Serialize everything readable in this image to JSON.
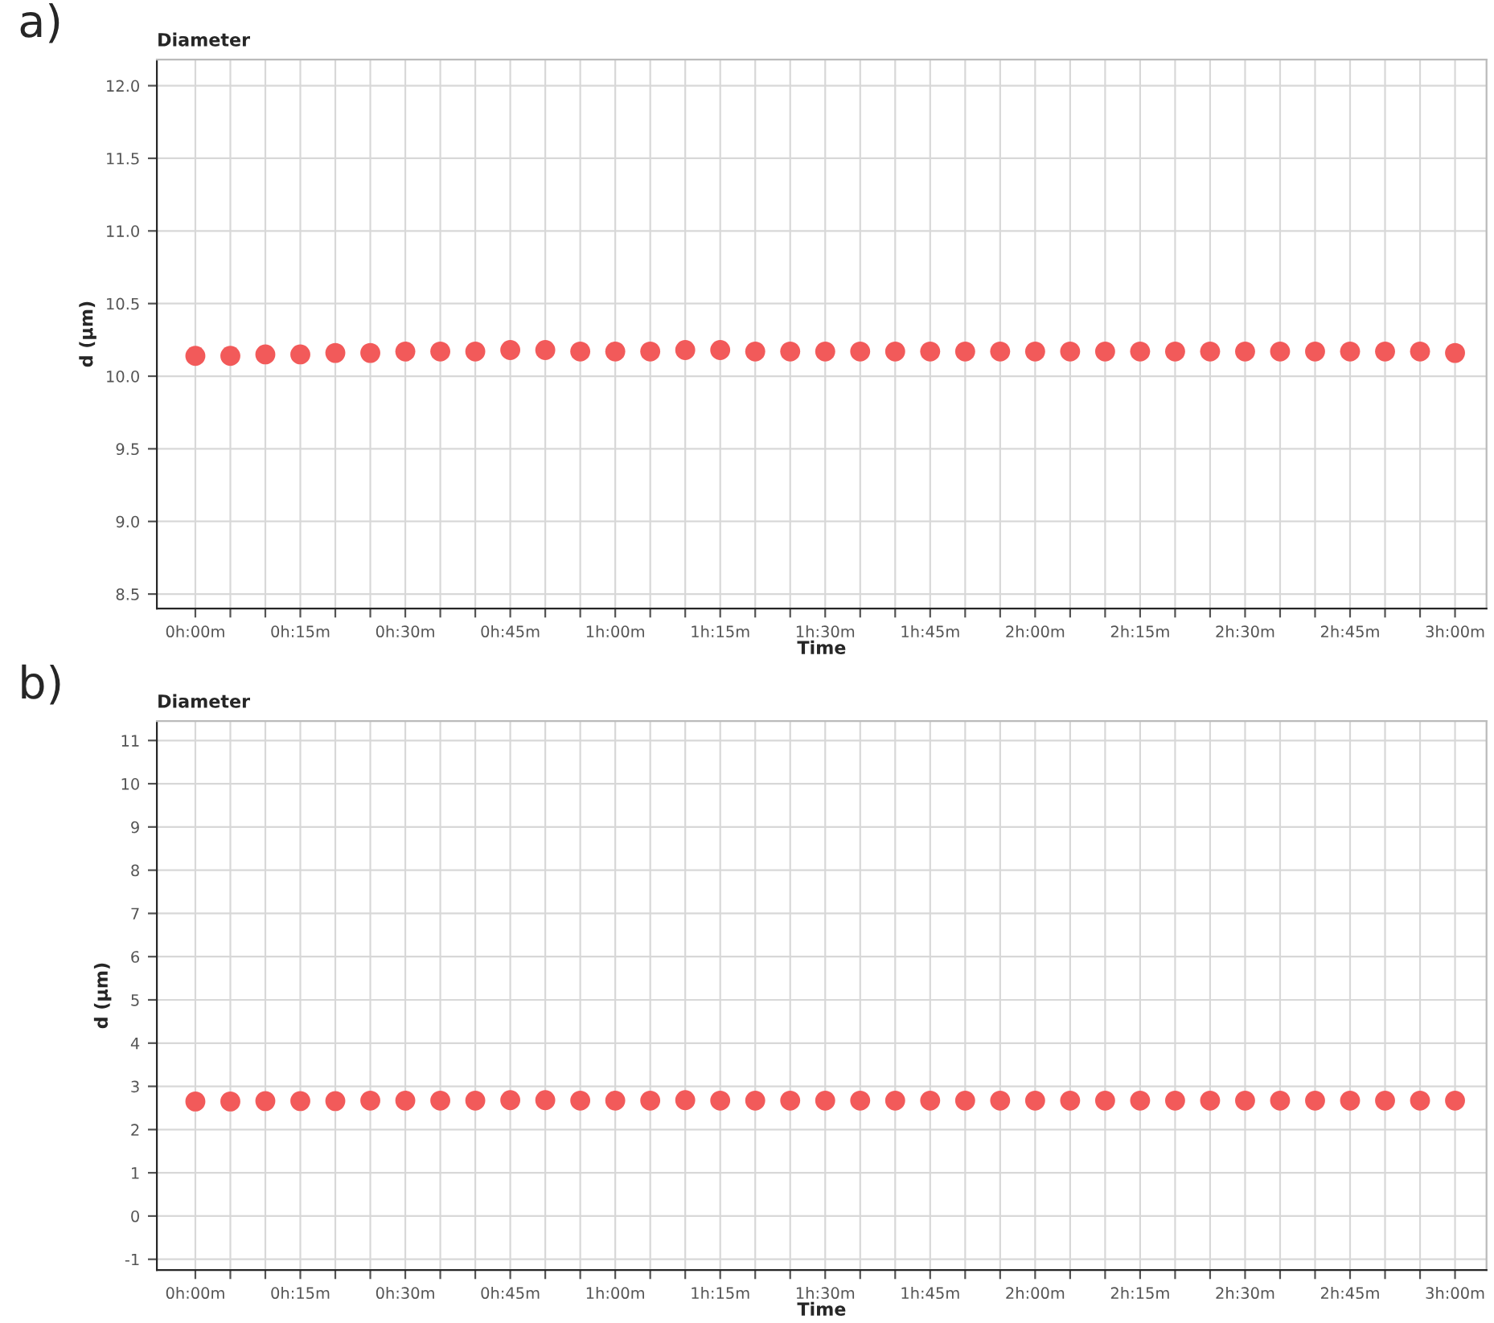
{
  "chart_data": [
    {
      "type": "scatter",
      "title": "Diameter",
      "xlabel": "Time",
      "ylabel": "d (µm)",
      "annotations": [
        "a)"
      ],
      "categories": [
        "0h:00m",
        null,
        null,
        "0h:15m",
        null,
        null,
        "0h:30m",
        null,
        null,
        "0h:45m",
        null,
        null,
        "1h:00m",
        null,
        null,
        "1h:15m",
        null,
        null,
        "1h:30m",
        null,
        null,
        "1h:45m",
        null,
        null,
        "2h:00m",
        null,
        null,
        "2h:15m",
        null,
        null,
        "2h:30m",
        null,
        null,
        "2h:45m",
        null,
        null,
        "3h:00m"
      ],
      "series": [
        {
          "color": "#f25a5a",
          "values": [
            10.14,
            10.14,
            10.15,
            10.15,
            10.16,
            10.16,
            10.17,
            10.17,
            10.17,
            10.18,
            10.18,
            10.17,
            10.17,
            10.17,
            10.18,
            10.18,
            10.17,
            10.17,
            10.17,
            10.17,
            10.17,
            10.17,
            10.17,
            10.17,
            10.17,
            10.17,
            10.17,
            10.17,
            10.17,
            10.17,
            10.17,
            10.17,
            10.17,
            10.17,
            10.17,
            10.17,
            10.16
          ]
        }
      ],
      "ylim": [
        8.4,
        12.18
      ],
      "yticks": [
        {
          "value": 8.5,
          "label": "8.5"
        },
        {
          "value": 9,
          "label": "9.0"
        },
        {
          "value": 9.5,
          "label": "9.5"
        },
        {
          "value": 10,
          "label": "10.0"
        },
        {
          "value": 10.5,
          "label": "10.5"
        },
        {
          "value": 11,
          "label": "11.0"
        },
        {
          "value": 11.5,
          "label": "11.5"
        },
        {
          "value": 12,
          "label": "12.0"
        }
      ],
      "grid": true,
      "marker": "circle"
    },
    {
      "type": "scatter",
      "title": "Diameter",
      "xlabel": "Time",
      "ylabel": "d (µm)",
      "annotations": [
        "b)"
      ],
      "categories": [
        "0h:00m",
        null,
        null,
        "0h:15m",
        null,
        null,
        "0h:30m",
        null,
        null,
        "0h:45m",
        null,
        null,
        "1h:00m",
        null,
        null,
        "1h:15m",
        null,
        null,
        "1h:30m",
        null,
        null,
        "1h:45m",
        null,
        null,
        "2h:00m",
        null,
        null,
        "2h:15m",
        null,
        null,
        "2h:30m",
        null,
        null,
        "2h:45m",
        null,
        null,
        "3h:00m"
      ],
      "series": [
        {
          "color": "#f25a5a",
          "values": [
            2.65,
            2.65,
            2.66,
            2.66,
            2.66,
            2.67,
            2.67,
            2.67,
            2.67,
            2.68,
            2.68,
            2.67,
            2.67,
            2.67,
            2.68,
            2.67,
            2.67,
            2.67,
            2.67,
            2.67,
            2.67,
            2.67,
            2.67,
            2.67,
            2.67,
            2.67,
            2.67,
            2.67,
            2.67,
            2.67,
            2.67,
            2.67,
            2.67,
            2.67,
            2.67,
            2.67,
            2.67
          ]
        }
      ],
      "ylim": [
        -1.25,
        11.45
      ],
      "yticks": [
        -1,
        0,
        1,
        2,
        3,
        4,
        5,
        6,
        7,
        8,
        9,
        10,
        11
      ],
      "grid": true,
      "marker": "circle"
    }
  ]
}
